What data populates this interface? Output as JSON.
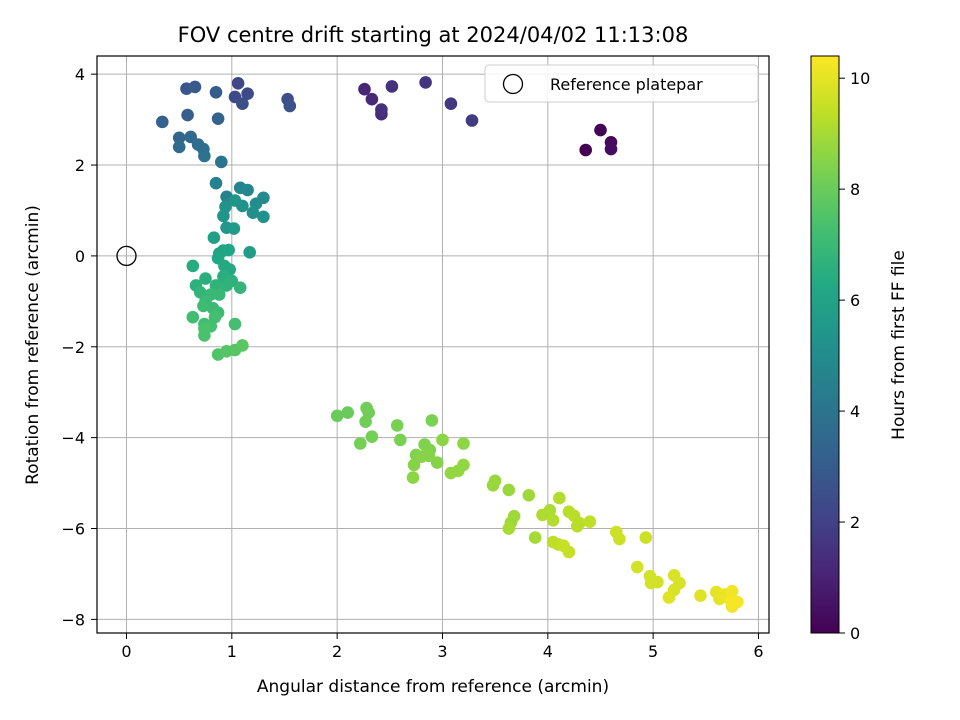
{
  "chart_data": {
    "type": "scatter",
    "title": "FOV centre drift starting at 2024/04/02 11:13:08",
    "xlabel": "Angular distance from reference (arcmin)",
    "ylabel": "Rotation from reference (arcmin)",
    "xlim": [
      -0.28,
      6.1
    ],
    "ylim": [
      -8.3,
      4.4
    ],
    "xticks": [
      0,
      1,
      2,
      3,
      4,
      5,
      6
    ],
    "yticks": [
      -8,
      -6,
      -4,
      -2,
      0,
      2,
      4
    ],
    "grid": true,
    "legend": {
      "placement": "top-right",
      "entries": [
        "Reference platepar"
      ]
    },
    "reference_point": {
      "x": 0,
      "y": 0,
      "label": "Reference platepar"
    },
    "colorbar": {
      "label": "Hours from first FF file",
      "colormap": "viridis",
      "min": 0,
      "max": 10.4,
      "ticks": [
        0,
        2,
        4,
        6,
        8,
        10
      ]
    },
    "series": [
      {
        "values": [
          [
            4.36,
            2.33,
            0.0
          ],
          [
            4.5,
            2.77,
            0.1
          ],
          [
            4.6,
            2.5,
            0.2
          ],
          [
            4.6,
            2.35,
            0.3
          ],
          [
            2.26,
            3.67,
            1.1
          ],
          [
            2.33,
            3.45,
            1.2
          ],
          [
            2.42,
            3.12,
            1.3
          ],
          [
            2.42,
            3.22,
            1.4
          ],
          [
            2.52,
            3.73,
            1.5
          ],
          [
            2.84,
            3.82,
            1.6
          ],
          [
            3.08,
            3.35,
            1.7
          ],
          [
            3.28,
            2.98,
            1.8
          ],
          [
            1.06,
            3.8,
            2.2
          ],
          [
            1.03,
            3.5,
            2.3
          ],
          [
            1.15,
            3.57,
            2.4
          ],
          [
            1.1,
            3.35,
            2.5
          ],
          [
            1.53,
            3.45,
            2.5
          ],
          [
            1.55,
            3.3,
            2.6
          ],
          [
            0.57,
            3.68,
            2.8
          ],
          [
            0.65,
            3.72,
            2.9
          ],
          [
            0.85,
            3.6,
            3.0
          ],
          [
            0.58,
            3.1,
            3.1
          ],
          [
            0.34,
            2.95,
            3.2
          ],
          [
            0.87,
            3.02,
            3.3
          ],
          [
            0.5,
            2.6,
            3.4
          ],
          [
            0.61,
            2.62,
            3.5
          ],
          [
            0.5,
            2.4,
            3.6
          ],
          [
            0.68,
            2.45,
            3.7
          ],
          [
            0.73,
            2.35,
            3.8
          ],
          [
            0.74,
            2.2,
            3.9
          ],
          [
            0.9,
            2.07,
            4.0
          ],
          [
            0.85,
            1.6,
            4.5
          ],
          [
            0.95,
            1.3,
            4.6
          ],
          [
            1.08,
            1.5,
            4.7
          ],
          [
            1.15,
            1.45,
            4.8
          ],
          [
            1.3,
            1.28,
            4.9
          ],
          [
            1.23,
            1.15,
            5.0
          ],
          [
            1.2,
            0.95,
            5.1
          ],
          [
            1.3,
            0.86,
            5.2
          ],
          [
            1.1,
            1.1,
            5.2
          ],
          [
            0.94,
            1.08,
            5.3
          ],
          [
            0.92,
            0.88,
            5.4
          ],
          [
            1.03,
            1.22,
            5.4
          ],
          [
            0.95,
            0.62,
            5.5
          ],
          [
            1.02,
            0.6,
            5.6
          ],
          [
            1.17,
            0.08,
            5.7
          ],
          [
            0.83,
            0.4,
            5.9
          ],
          [
            0.88,
            0.05,
            6.0
          ],
          [
            0.92,
            0.12,
            6.0
          ],
          [
            0.97,
            0.13,
            6.1
          ],
          [
            0.87,
            -0.05,
            6.2
          ],
          [
            0.93,
            -0.22,
            6.3
          ],
          [
            0.98,
            -0.3,
            6.3
          ],
          [
            0.63,
            -0.22,
            6.4
          ],
          [
            0.75,
            -0.5,
            6.5
          ],
          [
            0.92,
            -0.45,
            6.5
          ],
          [
            1.0,
            -0.55,
            6.6
          ],
          [
            0.66,
            -0.65,
            6.6
          ],
          [
            0.85,
            -0.65,
            6.7
          ],
          [
            0.95,
            -0.65,
            6.7
          ],
          [
            1.08,
            -0.7,
            6.8
          ],
          [
            0.7,
            -0.8,
            6.8
          ],
          [
            0.8,
            -0.85,
            6.9
          ],
          [
            0.88,
            -0.85,
            6.9
          ],
          [
            0.75,
            -1.0,
            7.0
          ],
          [
            0.82,
            -1.15,
            7.0
          ],
          [
            0.73,
            -1.1,
            7.1
          ],
          [
            0.87,
            -1.25,
            7.1
          ],
          [
            0.63,
            -1.35,
            7.2
          ],
          [
            0.74,
            -1.5,
            7.2
          ],
          [
            0.84,
            -1.35,
            7.3
          ],
          [
            0.8,
            -1.55,
            7.3
          ],
          [
            1.03,
            -1.5,
            7.3
          ],
          [
            0.74,
            -1.75,
            7.4
          ],
          [
            0.74,
            -1.6,
            7.4
          ],
          [
            0.87,
            -2.17,
            7.5
          ],
          [
            0.95,
            -2.1,
            7.6
          ],
          [
            1.03,
            -2.07,
            7.6
          ],
          [
            1.1,
            -1.97,
            7.7
          ],
          [
            2.0,
            -3.52,
            8.0
          ],
          [
            2.1,
            -3.45,
            8.0
          ],
          [
            2.28,
            -3.35,
            8.1
          ],
          [
            2.3,
            -3.45,
            8.1
          ],
          [
            2.27,
            -3.65,
            8.1
          ],
          [
            2.33,
            -3.98,
            8.2
          ],
          [
            2.22,
            -4.13,
            8.2
          ],
          [
            2.57,
            -3.73,
            8.3
          ],
          [
            2.6,
            -4.05,
            8.3
          ],
          [
            2.9,
            -3.62,
            8.3
          ],
          [
            2.83,
            -4.15,
            8.4
          ],
          [
            2.88,
            -4.27,
            8.4
          ],
          [
            2.75,
            -4.38,
            8.4
          ],
          [
            2.8,
            -4.42,
            8.5
          ],
          [
            2.87,
            -4.4,
            8.5
          ],
          [
            2.95,
            -4.55,
            8.5
          ],
          [
            2.73,
            -4.6,
            8.5
          ],
          [
            2.72,
            -4.88,
            8.6
          ],
          [
            3.0,
            -4.05,
            8.6
          ],
          [
            3.2,
            -4.13,
            8.6
          ],
          [
            3.2,
            -4.6,
            8.7
          ],
          [
            3.15,
            -4.73,
            8.7
          ],
          [
            3.08,
            -4.78,
            8.7
          ],
          [
            3.5,
            -4.95,
            8.8
          ],
          [
            3.48,
            -5.05,
            8.8
          ],
          [
            3.63,
            -5.15,
            8.8
          ],
          [
            3.82,
            -5.27,
            8.9
          ],
          [
            3.68,
            -5.73,
            8.9
          ],
          [
            3.65,
            -5.87,
            8.9
          ],
          [
            3.63,
            -6.0,
            9.0
          ],
          [
            3.88,
            -6.2,
            9.0
          ],
          [
            3.95,
            -5.7,
            9.1
          ],
          [
            4.02,
            -5.6,
            9.1
          ],
          [
            4.05,
            -5.82,
            9.2
          ],
          [
            4.11,
            -5.33,
            9.2
          ],
          [
            4.2,
            -5.63,
            9.3
          ],
          [
            4.25,
            -5.72,
            9.3
          ],
          [
            4.3,
            -5.88,
            9.3
          ],
          [
            4.28,
            -5.95,
            9.3
          ],
          [
            4.4,
            -5.85,
            9.4
          ],
          [
            4.05,
            -6.3,
            9.4
          ],
          [
            4.1,
            -6.35,
            9.4
          ],
          [
            4.15,
            -6.38,
            9.5
          ],
          [
            4.2,
            -6.52,
            9.5
          ],
          [
            4.65,
            -6.08,
            9.6
          ],
          [
            4.68,
            -6.23,
            9.6
          ],
          [
            4.93,
            -6.2,
            9.6
          ],
          [
            4.85,
            -6.85,
            9.7
          ],
          [
            4.97,
            -7.05,
            9.7
          ],
          [
            4.98,
            -7.2,
            9.7
          ],
          [
            5.04,
            -7.18,
            9.7
          ],
          [
            5.2,
            -7.03,
            9.8
          ],
          [
            5.25,
            -7.2,
            9.8
          ],
          [
            5.2,
            -7.35,
            9.8
          ],
          [
            5.15,
            -7.52,
            9.9
          ],
          [
            5.45,
            -7.48,
            9.9
          ],
          [
            5.6,
            -7.4,
            10.0
          ],
          [
            5.63,
            -7.55,
            10.0
          ],
          [
            5.68,
            -7.45,
            10.1
          ],
          [
            5.7,
            -7.5,
            10.1
          ],
          [
            5.75,
            -7.38,
            10.2
          ],
          [
            5.75,
            -7.72,
            10.2
          ],
          [
            5.8,
            -7.62,
            10.3
          ],
          [
            5.74,
            -7.6,
            10.3
          ]
        ]
      }
    ]
  }
}
